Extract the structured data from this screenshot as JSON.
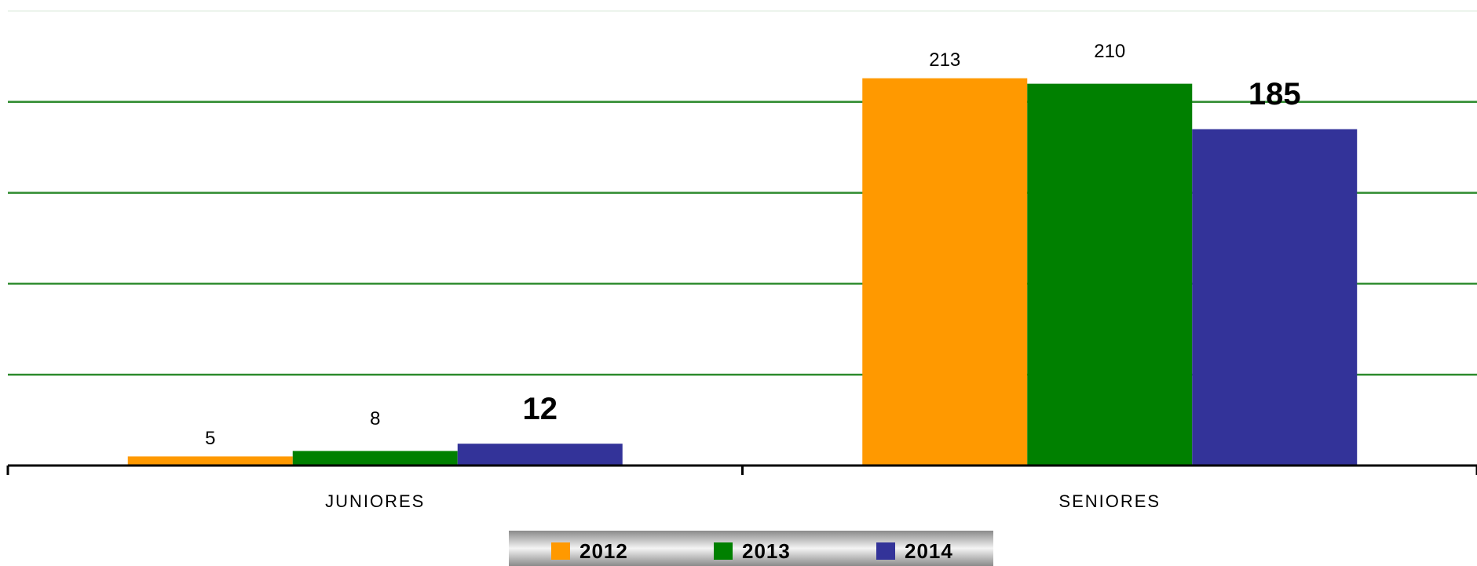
{
  "chart_data": {
    "type": "bar",
    "categories": [
      "JUNIORES",
      "SENIORES"
    ],
    "series": [
      {
        "name": "2012",
        "color": "#ff9900",
        "values": [
          5,
          213
        ]
      },
      {
        "name": "2013",
        "color": "#008000",
        "values": [
          8,
          210
        ]
      },
      {
        "name": "2014",
        "color": "#333399",
        "values": [
          12,
          185
        ]
      }
    ],
    "ylim": [
      0,
      250
    ],
    "yticks": [
      0,
      50,
      100,
      150,
      200,
      250
    ],
    "grid": true,
    "legend": "bottom"
  }
}
